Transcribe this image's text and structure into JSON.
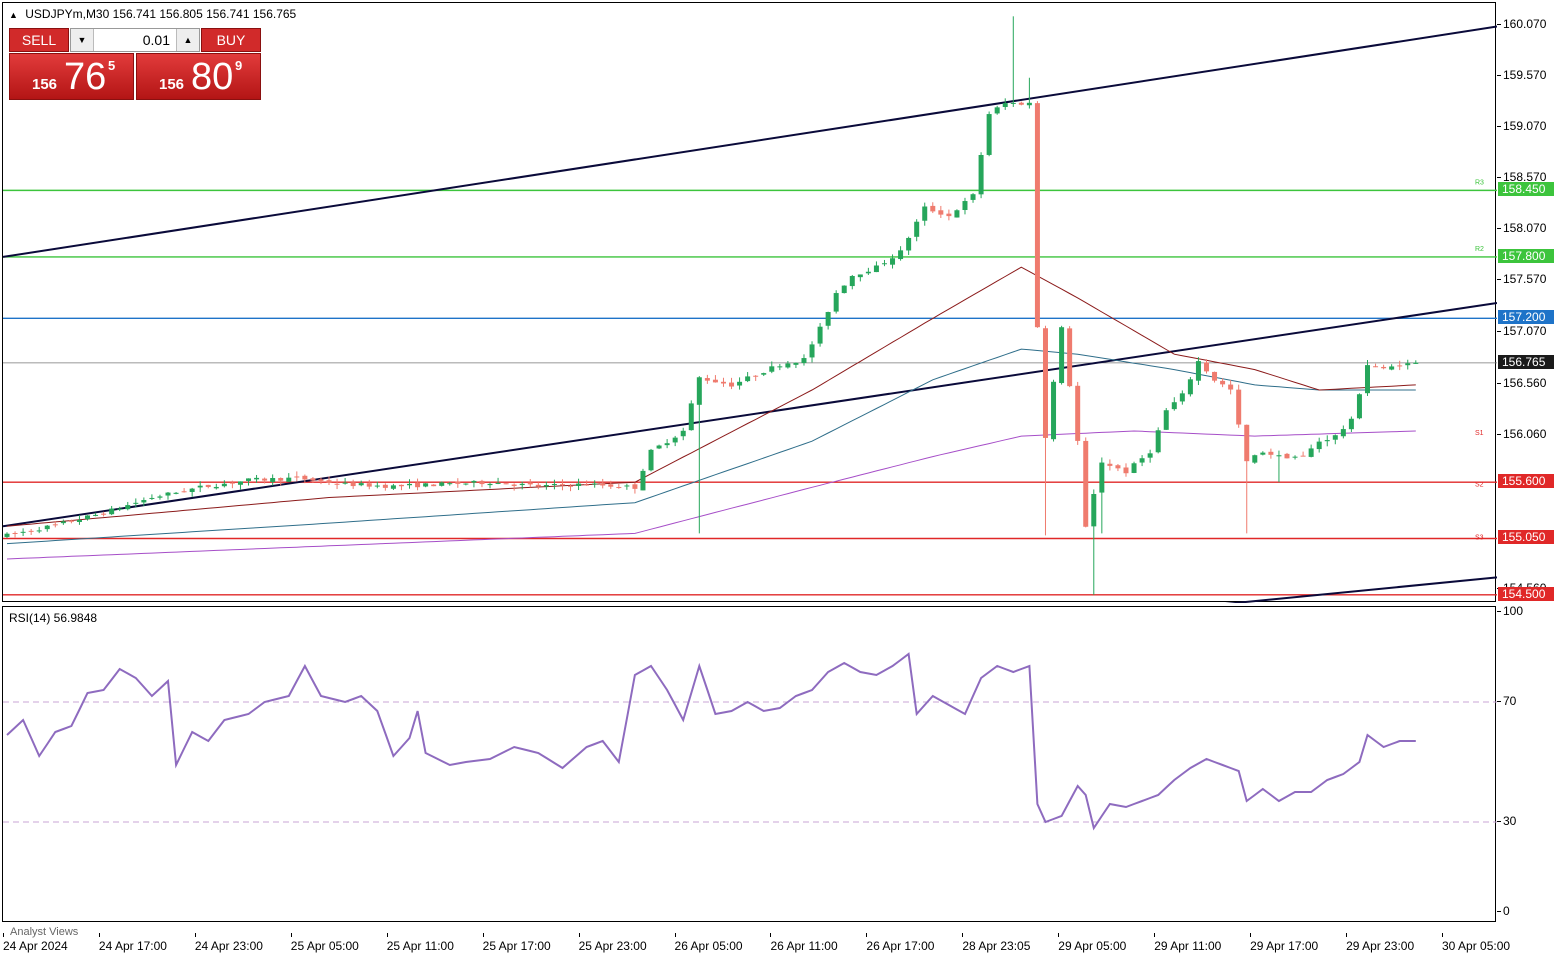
{
  "header": {
    "symbol": "USDJPYm,M30",
    "open": "156.741",
    "high": "156.805",
    "low": "156.741",
    "close": "156.765"
  },
  "trade_panel": {
    "sell_label": "SELL",
    "buy_label": "BUY",
    "lot_value": "0.01",
    "sell_price_small": "156",
    "sell_price_big": "76",
    "sell_price_sup": "5",
    "buy_price_small": "156",
    "buy_price_big": "80",
    "buy_price_sup": "9"
  },
  "price_axis": [
    "160.070",
    "159.570",
    "159.070",
    "158.570",
    "158.070",
    "157.570",
    "157.070",
    "156.560",
    "156.060",
    "154.560"
  ],
  "level_tags": [
    {
      "label": "158.450",
      "value": 158.45,
      "color": "#3cc43c"
    },
    {
      "label": "157.800",
      "value": 157.8,
      "color": "#3cc43c"
    },
    {
      "label": "157.200",
      "value": 157.2,
      "color": "#1e73c8"
    },
    {
      "label": "156.765",
      "value": 156.765,
      "color": "#1a1a1a"
    },
    {
      "label": "155.600",
      "value": 155.6,
      "color": "#e02828"
    },
    {
      "label": "155.050",
      "value": 155.05,
      "color": "#e02828"
    },
    {
      "label": "154.500",
      "value": 154.5,
      "color": "#e02828"
    }
  ],
  "pivot_marks": [
    "R3",
    "R2",
    "S1",
    "S2",
    "S3"
  ],
  "rsi": {
    "title": "RSI(14) 56.9848",
    "axis": [
      "100",
      "70",
      "30",
      "0"
    ],
    "levels": [
      70,
      30
    ]
  },
  "time_axis": [
    "24 Apr 2024",
    "24 Apr 17:00",
    "24 Apr 23:00",
    "25 Apr 05:00",
    "25 Apr 11:00",
    "25 Apr 17:00",
    "25 Apr 23:00",
    "26 Apr 05:00",
    "26 Apr 11:00",
    "26 Apr 17:00",
    "28 Apr 23:05",
    "29 Apr 05:00",
    "29 Apr 11:00",
    "29 Apr 17:00",
    "29 Apr 23:00",
    "30 Apr 05:00"
  ],
  "watermark": "Analyst Views",
  "colors": {
    "bull": "#26a65b",
    "bear": "#ef7b6e",
    "rsi_line": "#8e6bbf",
    "ma_fast": "#8b1a1a",
    "ma_mid": "#2f6e8a",
    "ma_slow": "#a64ec8",
    "trend": "#0a0a3a"
  },
  "chart_data": {
    "type": "candlestick",
    "title": "USDJPYm,M30",
    "ylim": [
      154.42,
      160.28
    ],
    "candle_count": 180,
    "anchors": [
      [
        0,
        155.08
      ],
      [
        6,
        155.18
      ],
      [
        12,
        155.3
      ],
      [
        18,
        155.45
      ],
      [
        24,
        155.55
      ],
      [
        30,
        155.62
      ],
      [
        36,
        155.64
      ],
      [
        42,
        155.58
      ],
      [
        48,
        155.56
      ],
      [
        54,
        155.58
      ],
      [
        60,
        155.6
      ],
      [
        66,
        155.56
      ],
      [
        72,
        155.58
      ],
      [
        78,
        155.55
      ],
      [
        80,
        155.9
      ],
      [
        84,
        156.1
      ],
      [
        86,
        156.62
      ],
      [
        90,
        156.55
      ],
      [
        93,
        156.65
      ],
      [
        96,
        156.75
      ],
      [
        99,
        156.8
      ],
      [
        101,
        157.1
      ],
      [
        103,
        157.45
      ],
      [
        105,
        157.62
      ],
      [
        108,
        157.7
      ],
      [
        111,
        157.85
      ],
      [
        114,
        158.28
      ],
      [
        117,
        158.2
      ],
      [
        120,
        158.4
      ],
      [
        122,
        159.2
      ],
      [
        124,
        159.3
      ],
      [
        127,
        159.3
      ],
      [
        128,
        157.12
      ],
      [
        129,
        156.05
      ],
      [
        131,
        157.1
      ],
      [
        133,
        156.0
      ],
      [
        134,
        155.15
      ],
      [
        136,
        155.8
      ],
      [
        139,
        155.7
      ],
      [
        142,
        155.9
      ],
      [
        144,
        156.3
      ],
      [
        146,
        156.45
      ],
      [
        148,
        156.78
      ],
      [
        150,
        156.6
      ],
      [
        152,
        156.5
      ],
      [
        154,
        155.8
      ],
      [
        156,
        155.9
      ],
      [
        158,
        155.85
      ],
      [
        161,
        155.85
      ],
      [
        163,
        156.0
      ],
      [
        165,
        156.05
      ],
      [
        167,
        156.2
      ],
      [
        169,
        156.75
      ],
      [
        171,
        156.7
      ],
      [
        173,
        156.75
      ],
      [
        175,
        156.76
      ]
    ],
    "rsi_anchors": [
      [
        0,
        59
      ],
      [
        2,
        64
      ],
      [
        4,
        52
      ],
      [
        6,
        60
      ],
      [
        8,
        62
      ],
      [
        10,
        73
      ],
      [
        12,
        74
      ],
      [
        14,
        81
      ],
      [
        16,
        78
      ],
      [
        18,
        72
      ],
      [
        20,
        77
      ],
      [
        21,
        49
      ],
      [
        23,
        60
      ],
      [
        25,
        57
      ],
      [
        27,
        64
      ],
      [
        30,
        66
      ],
      [
        32,
        70
      ],
      [
        35,
        72
      ],
      [
        37,
        82
      ],
      [
        39,
        72
      ],
      [
        42,
        70
      ],
      [
        44,
        72
      ],
      [
        46,
        67
      ],
      [
        48,
        52
      ],
      [
        50,
        58
      ],
      [
        51,
        67
      ],
      [
        52,
        53
      ],
      [
        55,
        49
      ],
      [
        57,
        50
      ],
      [
        60,
        51
      ],
      [
        63,
        55
      ],
      [
        66,
        53
      ],
      [
        69,
        48
      ],
      [
        72,
        55
      ],
      [
        74,
        57
      ],
      [
        76,
        50
      ],
      [
        78,
        79
      ],
      [
        80,
        82
      ],
      [
        82,
        74
      ],
      [
        84,
        64
      ],
      [
        86,
        82
      ],
      [
        88,
        66
      ],
      [
        90,
        67
      ],
      [
        92,
        70
      ],
      [
        94,
        67
      ],
      [
        96,
        68
      ],
      [
        98,
        72
      ],
      [
        100,
        74
      ],
      [
        102,
        80
      ],
      [
        104,
        83
      ],
      [
        106,
        80
      ],
      [
        108,
        79
      ],
      [
        110,
        82
      ],
      [
        112,
        86
      ],
      [
        113,
        66
      ],
      [
        115,
        72
      ],
      [
        117,
        69
      ],
      [
        119,
        66
      ],
      [
        121,
        78
      ],
      [
        123,
        82
      ],
      [
        125,
        80
      ],
      [
        127,
        82
      ],
      [
        128,
        36
      ],
      [
        129,
        30
      ],
      [
        131,
        32
      ],
      [
        133,
        42
      ],
      [
        134,
        39
      ],
      [
        135,
        28
      ],
      [
        137,
        36
      ],
      [
        139,
        35
      ],
      [
        141,
        37
      ],
      [
        143,
        39
      ],
      [
        145,
        44
      ],
      [
        147,
        48
      ],
      [
        149,
        51
      ],
      [
        151,
        49
      ],
      [
        153,
        47
      ],
      [
        154,
        37
      ],
      [
        156,
        41
      ],
      [
        158,
        37
      ],
      [
        160,
        40
      ],
      [
        162,
        40
      ],
      [
        164,
        44
      ],
      [
        166,
        46
      ],
      [
        168,
        50
      ],
      [
        169,
        59
      ],
      [
        171,
        55
      ],
      [
        173,
        57
      ],
      [
        175,
        57
      ]
    ],
    "ma_fast_anchors": [
      [
        0,
        155.17
      ],
      [
        40,
        155.45
      ],
      [
        78,
        155.6
      ],
      [
        100,
        156.5
      ],
      [
        115,
        157.2
      ],
      [
        126,
        157.7
      ],
      [
        133,
        157.4
      ],
      [
        145,
        156.85
      ],
      [
        155,
        156.7
      ],
      [
        163,
        156.5
      ],
      [
        175,
        156.55
      ]
    ],
    "ma_mid_anchors": [
      [
        0,
        155.0
      ],
      [
        40,
        155.2
      ],
      [
        78,
        155.4
      ],
      [
        100,
        156.0
      ],
      [
        115,
        156.6
      ],
      [
        126,
        156.9
      ],
      [
        133,
        156.85
      ],
      [
        145,
        156.7
      ],
      [
        155,
        156.55
      ],
      [
        163,
        156.5
      ],
      [
        175,
        156.5
      ]
    ],
    "ma_slow_anchors": [
      [
        0,
        154.85
      ],
      [
        78,
        155.1
      ],
      [
        100,
        155.55
      ],
      [
        115,
        155.85
      ],
      [
        126,
        156.05
      ],
      [
        140,
        156.1
      ],
      [
        155,
        156.05
      ],
      [
        175,
        156.1
      ]
    ],
    "trendlines": [
      {
        "from": [
          0,
          157.8
        ],
        "to": [
          180,
          160.05
        ]
      },
      {
        "from": [
          0,
          155.17
        ],
        "to": [
          180,
          157.35
        ]
      },
      {
        "from": [
          150,
          154.4
        ],
        "to": [
          180,
          154.67
        ]
      }
    ]
  }
}
